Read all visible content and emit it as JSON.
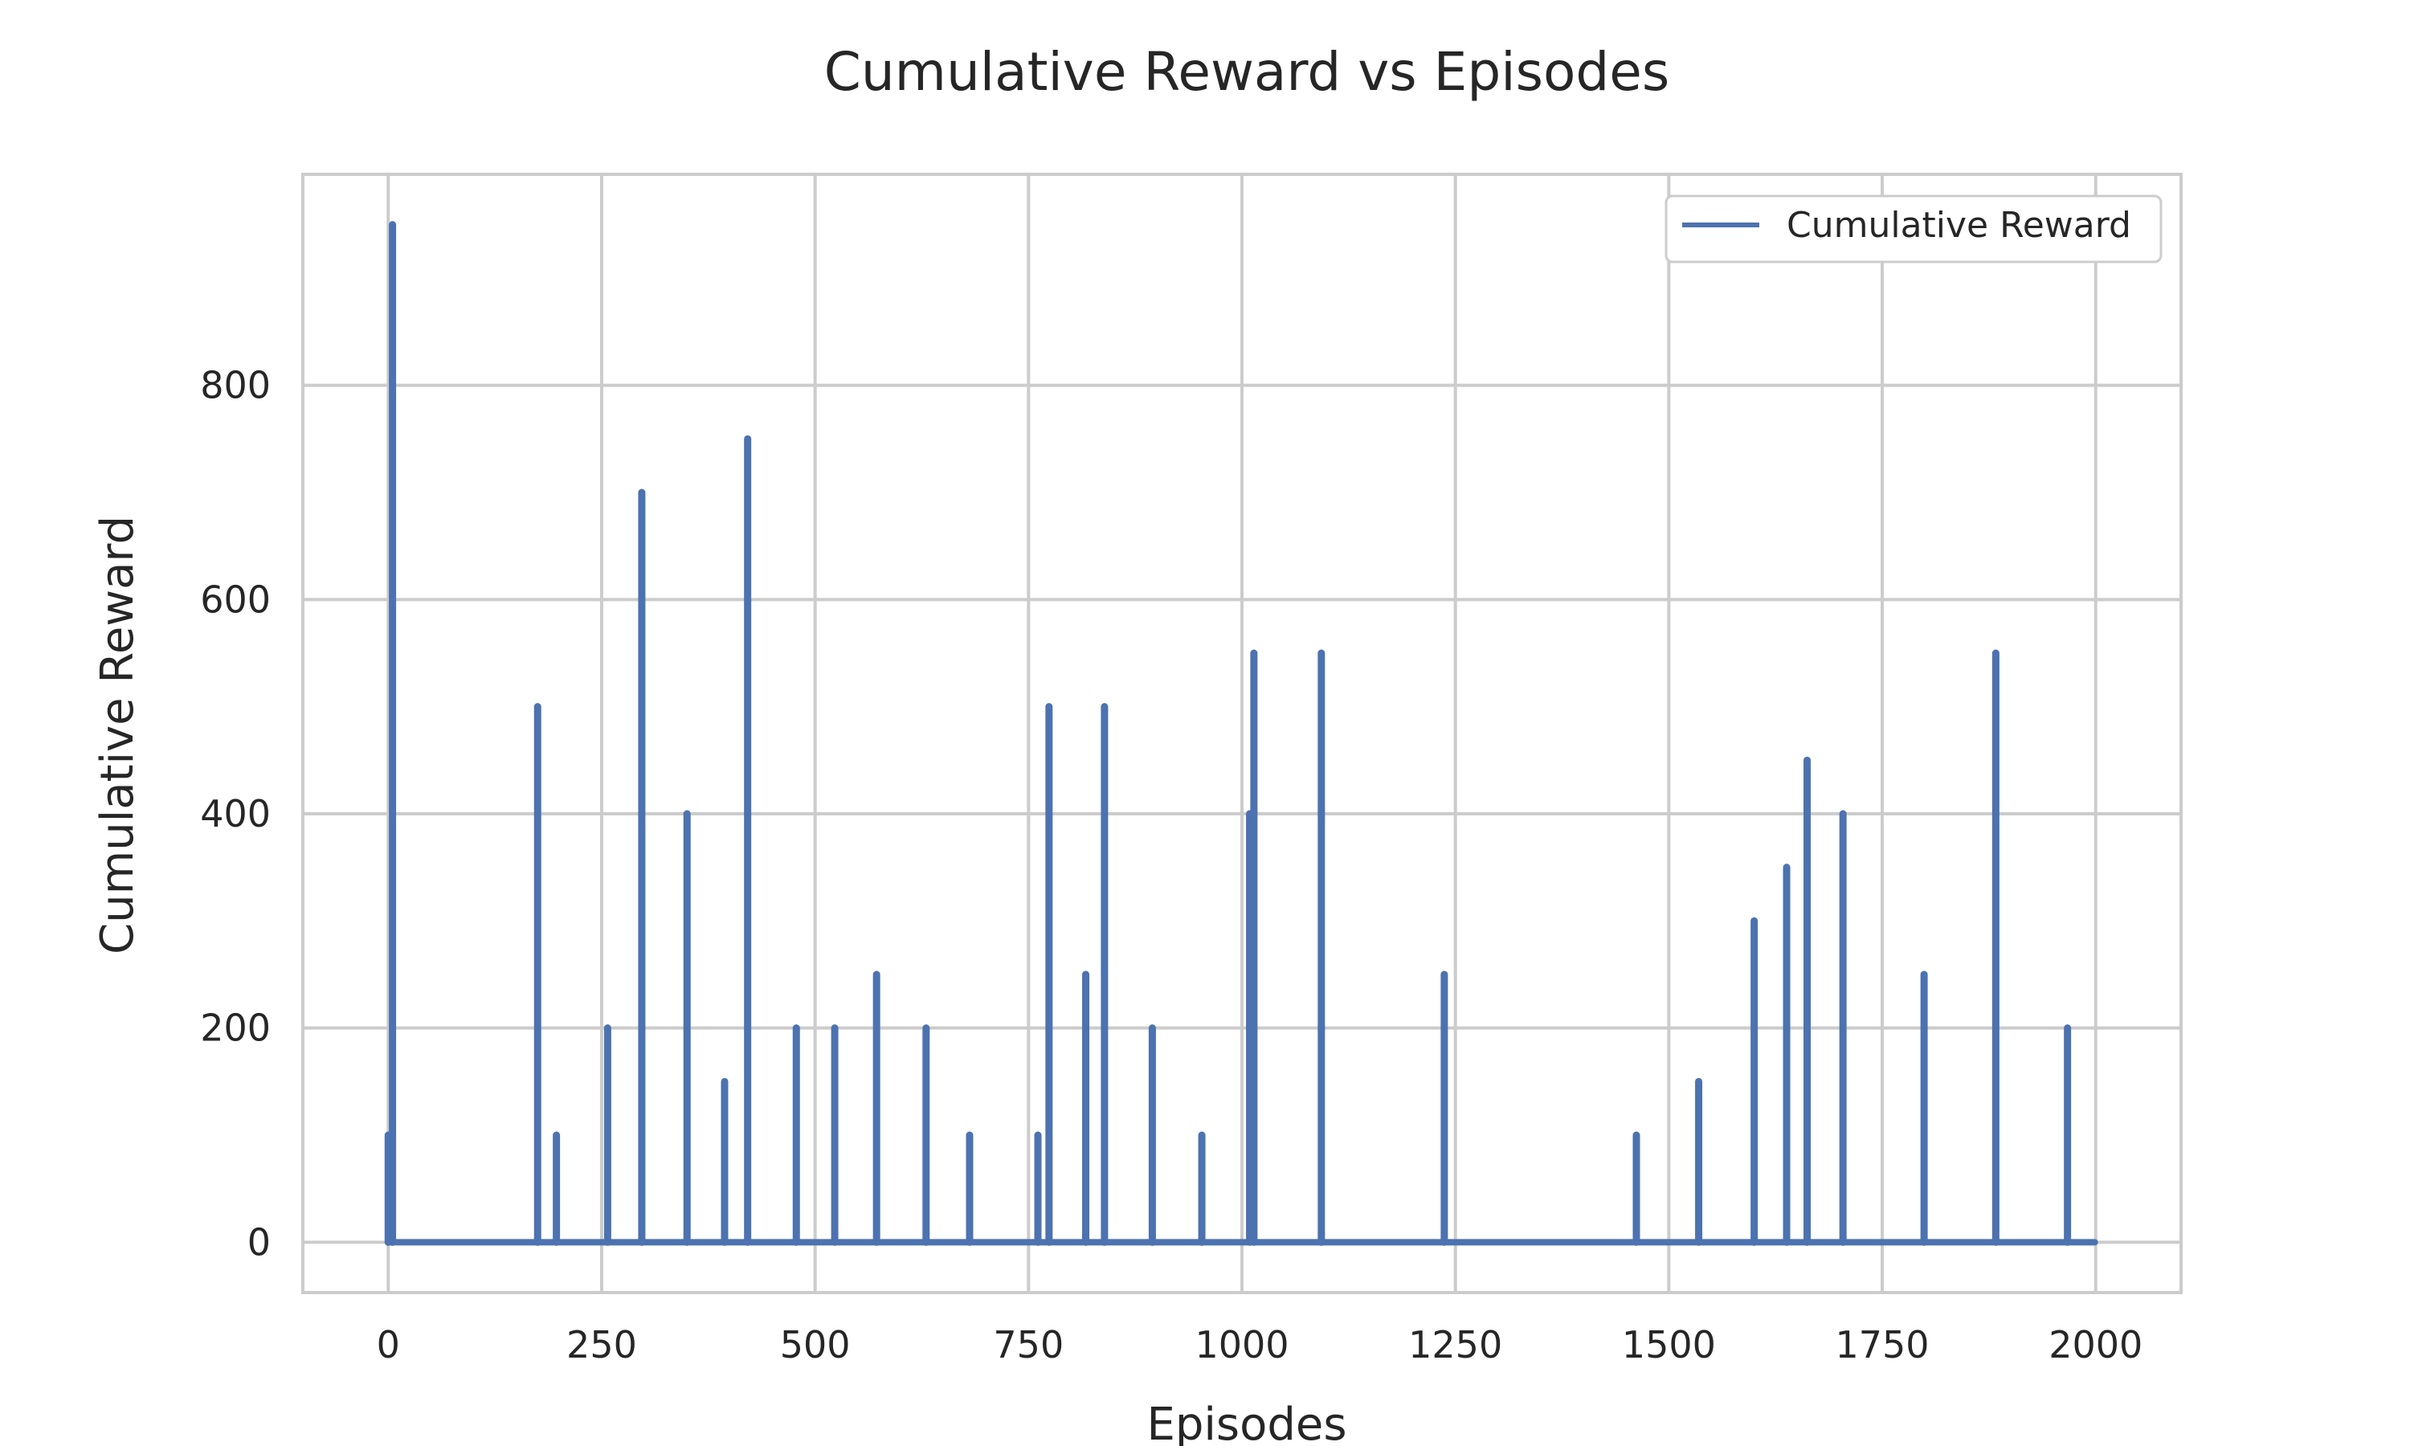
{
  "chart_data": {
    "type": "line",
    "title": "Cumulative Reward vs Episodes",
    "xlabel": "Episodes",
    "ylabel": "Cumulative Reward",
    "xlim": [
      -100,
      2100
    ],
    "ylim": [
      -47,
      997
    ],
    "xticks": [
      0,
      250,
      500,
      750,
      1000,
      1250,
      1500,
      1750,
      2000
    ],
    "yticks": [
      0,
      200,
      400,
      600,
      800
    ],
    "grid": true,
    "legend_position": "top-right",
    "series": [
      {
        "name": "Cumulative Reward",
        "color": "#4c72b0",
        "spikes": [
          {
            "x": 0,
            "y": 100
          },
          {
            "x": 5,
            "y": 950
          },
          {
            "x": 175,
            "y": 500
          },
          {
            "x": 197,
            "y": 100
          },
          {
            "x": 257,
            "y": 200
          },
          {
            "x": 297,
            "y": 700
          },
          {
            "x": 350,
            "y": 400
          },
          {
            "x": 394,
            "y": 150
          },
          {
            "x": 421,
            "y": 750
          },
          {
            "x": 478,
            "y": 200
          },
          {
            "x": 523,
            "y": 200
          },
          {
            "x": 572,
            "y": 250
          },
          {
            "x": 630,
            "y": 200
          },
          {
            "x": 681,
            "y": 100
          },
          {
            "x": 761,
            "y": 100
          },
          {
            "x": 774,
            "y": 500
          },
          {
            "x": 817,
            "y": 250
          },
          {
            "x": 839,
            "y": 500
          },
          {
            "x": 895,
            "y": 200
          },
          {
            "x": 953,
            "y": 100
          },
          {
            "x": 1009,
            "y": 400
          },
          {
            "x": 1014,
            "y": 550
          },
          {
            "x": 1093,
            "y": 550
          },
          {
            "x": 1237,
            "y": 250
          },
          {
            "x": 1462,
            "y": 100
          },
          {
            "x": 1535,
            "y": 150
          },
          {
            "x": 1600,
            "y": 300
          },
          {
            "x": 1638,
            "y": 350
          },
          {
            "x": 1662,
            "y": 450
          },
          {
            "x": 1704,
            "y": 400
          },
          {
            "x": 1799,
            "y": 250
          },
          {
            "x": 1883,
            "y": 550
          },
          {
            "x": 1967,
            "y": 200
          }
        ],
        "baseline": 0,
        "x_end": 1999
      }
    ]
  }
}
